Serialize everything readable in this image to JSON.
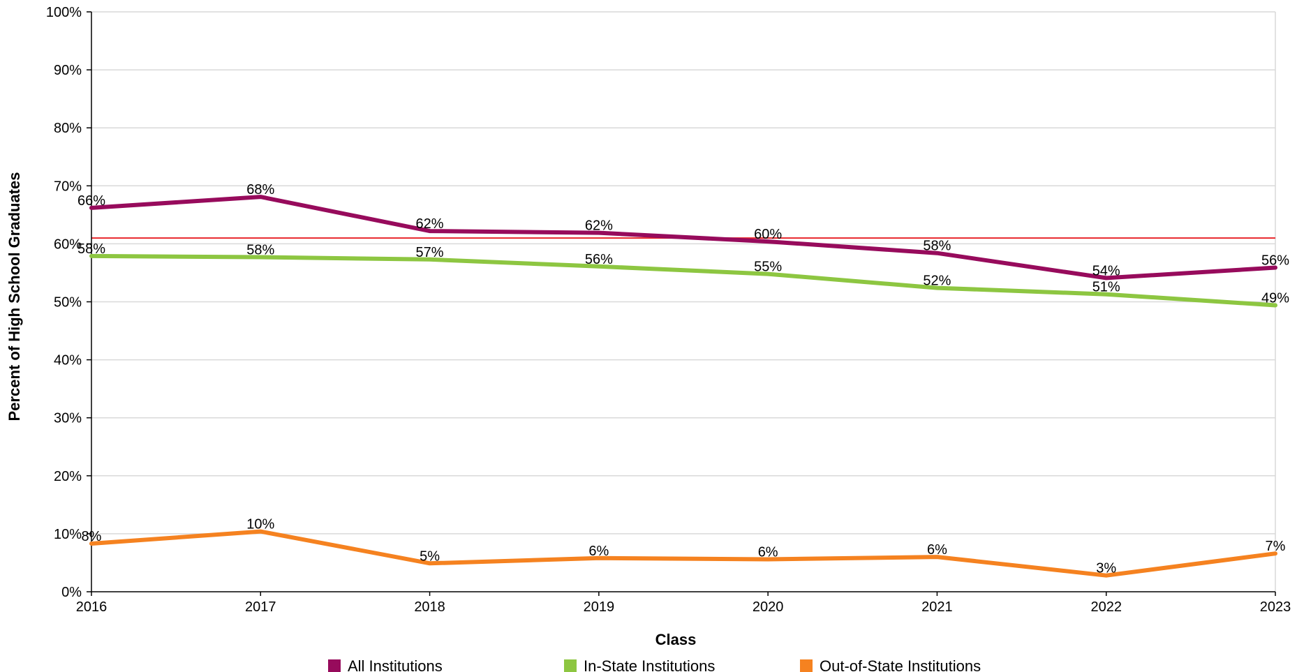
{
  "chart_data": {
    "type": "line",
    "title": "",
    "xlabel": "Class",
    "ylabel": "Percent of High School Graduates",
    "categories": [
      "2016",
      "2017",
      "2018",
      "2019",
      "2020",
      "2021",
      "2022",
      "2023"
    ],
    "ylim": [
      0,
      100
    ],
    "yticks": [
      0,
      10,
      20,
      30,
      40,
      50,
      60,
      70,
      80,
      90,
      100
    ],
    "ytick_labels": [
      "0%",
      "10%",
      "20%",
      "30%",
      "40%",
      "50%",
      "60%",
      "70%",
      "80%",
      "90%",
      "100%"
    ],
    "grid": true,
    "legend_position": "bottom",
    "reference_line": {
      "value": 61,
      "color": "#e8262b"
    },
    "series": [
      {
        "name": "All Institutions",
        "color": "#970b5c",
        "values": [
          66.2,
          68.1,
          62.2,
          61.9,
          60.4,
          58.4,
          54.1,
          55.9
        ],
        "labels": [
          "66%",
          "68%",
          "62%",
          "62%",
          "60%",
          "58%",
          "54%",
          "56%"
        ]
      },
      {
        "name": "In-State Institutions",
        "color": "#8dc641",
        "values": [
          57.9,
          57.7,
          57.3,
          56.1,
          54.8,
          52.4,
          51.3,
          49.4
        ],
        "labels": [
          "58%",
          "58%",
          "57%",
          "56%",
          "55%",
          "52%",
          "51%",
          "49%"
        ]
      },
      {
        "name": "Out-of-State Institutions",
        "color": "#f58220",
        "values": [
          8.3,
          10.4,
          4.9,
          5.8,
          5.6,
          6.0,
          2.8,
          6.6
        ],
        "labels": [
          "8%",
          "10%",
          "5%",
          "6%",
          "6%",
          "6%",
          "3%",
          "7%"
        ]
      }
    ]
  }
}
